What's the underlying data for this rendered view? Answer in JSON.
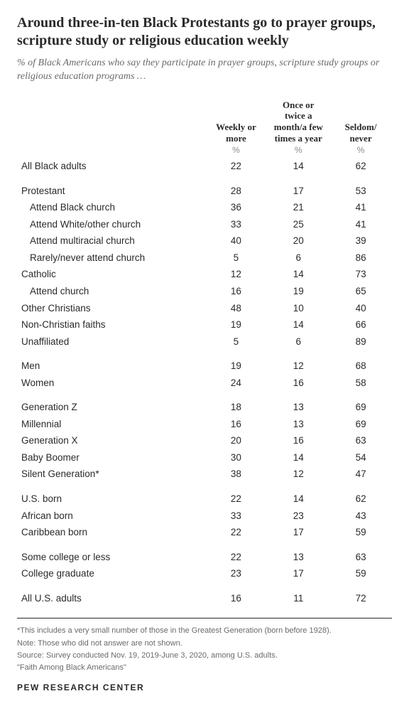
{
  "title": "Around three-in-ten Black Protestants go to prayer groups, scripture study or religious education weekly",
  "subtitle": "% of Black Americans who say they participate in prayer groups, scripture study groups or religious education programs …",
  "columns": {
    "c1": "Weekly or more",
    "c2": "Once or twice a month/a few times a year",
    "c3": "Seldom/ never",
    "pct": "%"
  },
  "rows": [
    {
      "label": "All Black adults",
      "v": [
        "22",
        "14",
        "62"
      ],
      "indent": 0,
      "gap": false
    },
    {
      "label": "Protestant",
      "v": [
        "28",
        "17",
        "53"
      ],
      "indent": 0,
      "gap": true
    },
    {
      "label": "Attend Black church",
      "v": [
        "36",
        "21",
        "41"
      ],
      "indent": 1,
      "gap": false
    },
    {
      "label": "Attend White/other church",
      "v": [
        "33",
        "25",
        "41"
      ],
      "indent": 1,
      "gap": false
    },
    {
      "label": "Attend multiracial church",
      "v": [
        "40",
        "20",
        "39"
      ],
      "indent": 1,
      "gap": false
    },
    {
      "label": "Rarely/never attend church",
      "v": [
        "5",
        "6",
        "86"
      ],
      "indent": 1,
      "gap": false
    },
    {
      "label": "Catholic",
      "v": [
        "12",
        "14",
        "73"
      ],
      "indent": 0,
      "gap": false
    },
    {
      "label": "Attend church",
      "v": [
        "16",
        "19",
        "65"
      ],
      "indent": 1,
      "gap": false
    },
    {
      "label": "Other Christians",
      "v": [
        "48",
        "10",
        "40"
      ],
      "indent": 0,
      "gap": false
    },
    {
      "label": "Non-Christian faiths",
      "v": [
        "19",
        "14",
        "66"
      ],
      "indent": 0,
      "gap": false
    },
    {
      "label": "Unaffiliated",
      "v": [
        "5",
        "6",
        "89"
      ],
      "indent": 0,
      "gap": false
    },
    {
      "label": "Men",
      "v": [
        "19",
        "12",
        "68"
      ],
      "indent": 0,
      "gap": true
    },
    {
      "label": "Women",
      "v": [
        "24",
        "16",
        "58"
      ],
      "indent": 0,
      "gap": false
    },
    {
      "label": "Generation Z",
      "v": [
        "18",
        "13",
        "69"
      ],
      "indent": 0,
      "gap": true
    },
    {
      "label": "Millennial",
      "v": [
        "16",
        "13",
        "69"
      ],
      "indent": 0,
      "gap": false
    },
    {
      "label": "Generation X",
      "v": [
        "20",
        "16",
        "63"
      ],
      "indent": 0,
      "gap": false
    },
    {
      "label": "Baby Boomer",
      "v": [
        "30",
        "14",
        "54"
      ],
      "indent": 0,
      "gap": false
    },
    {
      "label": "Silent Generation*",
      "v": [
        "38",
        "12",
        "47"
      ],
      "indent": 0,
      "gap": false
    },
    {
      "label": "U.S. born",
      "v": [
        "22",
        "14",
        "62"
      ],
      "indent": 0,
      "gap": true
    },
    {
      "label": "African born",
      "v": [
        "33",
        "23",
        "43"
      ],
      "indent": 0,
      "gap": false
    },
    {
      "label": "Caribbean born",
      "v": [
        "22",
        "17",
        "59"
      ],
      "indent": 0,
      "gap": false
    },
    {
      "label": "Some college or less",
      "v": [
        "22",
        "13",
        "63"
      ],
      "indent": 0,
      "gap": true
    },
    {
      "label": "College graduate",
      "v": [
        "23",
        "17",
        "59"
      ],
      "indent": 0,
      "gap": false
    },
    {
      "label": "All U.S. adults",
      "v": [
        "16",
        "11",
        "72"
      ],
      "indent": 0,
      "gap": true
    }
  ],
  "footnotes": {
    "f1": "*This includes a very small number of those in the Greatest Generation (born before 1928).",
    "f2": "Note: Those who did not answer are not shown.",
    "f3": "Source: Survey conducted Nov. 19, 2019-June 3, 2020, among U.S. adults.",
    "f4": "\"Faith Among Black Americans\""
  },
  "logo": "PEW RESEARCH CENTER",
  "style": {
    "title_color": "#2a2a2a",
    "subtitle_color": "#6a6a6a",
    "text_color": "#2a2a2a",
    "muted_color": "#8a8a8a",
    "background": "#ffffff",
    "title_fontsize": 20,
    "subtitle_fontsize": 14,
    "body_fontsize": 13.5,
    "footnote_fontsize": 11
  }
}
